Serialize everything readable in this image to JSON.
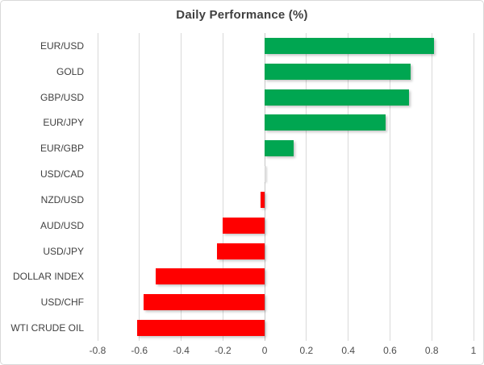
{
  "chart_data": {
    "type": "bar",
    "orientation": "horizontal",
    "title": "Daily Performance (%)",
    "categories": [
      "EUR/USD",
      "GOLD",
      "GBP/USD",
      "EUR/JPY",
      "EUR/GBP",
      "USD/CAD",
      "NZD/USD",
      "AUD/USD",
      "USD/JPY",
      "DOLLAR INDEX",
      "USD/CHF",
      "WTI CRUDE OIL"
    ],
    "values": [
      0.81,
      0.7,
      0.69,
      0.58,
      0.14,
      0.0,
      -0.02,
      -0.2,
      -0.23,
      -0.52,
      -0.58,
      -0.61
    ],
    "xlabel": "",
    "ylabel": "",
    "xlim": [
      -0.8,
      1
    ],
    "x_ticks": [
      -0.8,
      -0.6,
      -0.4,
      -0.2,
      0,
      0.2,
      0.4,
      0.6,
      0.8,
      1
    ],
    "x_tick_labels": [
      "-0.8",
      "-0.6",
      "-0.4",
      "-0.2",
      "0",
      "0.2",
      "0.4",
      "0.6",
      "0.8",
      "1"
    ],
    "grid": true,
    "legend": false,
    "colors": {
      "positive": "#00A651",
      "negative": "#FF0000",
      "zero_bar": "#DCDCDC",
      "gridline": "#D9D9D9",
      "axis_line": "#C6C6C6",
      "title_text": "#404040",
      "category_text": "#404040",
      "tick_text": "#4D4D4D",
      "border": "#D9D9D9",
      "background": "#FFFFFF"
    }
  }
}
